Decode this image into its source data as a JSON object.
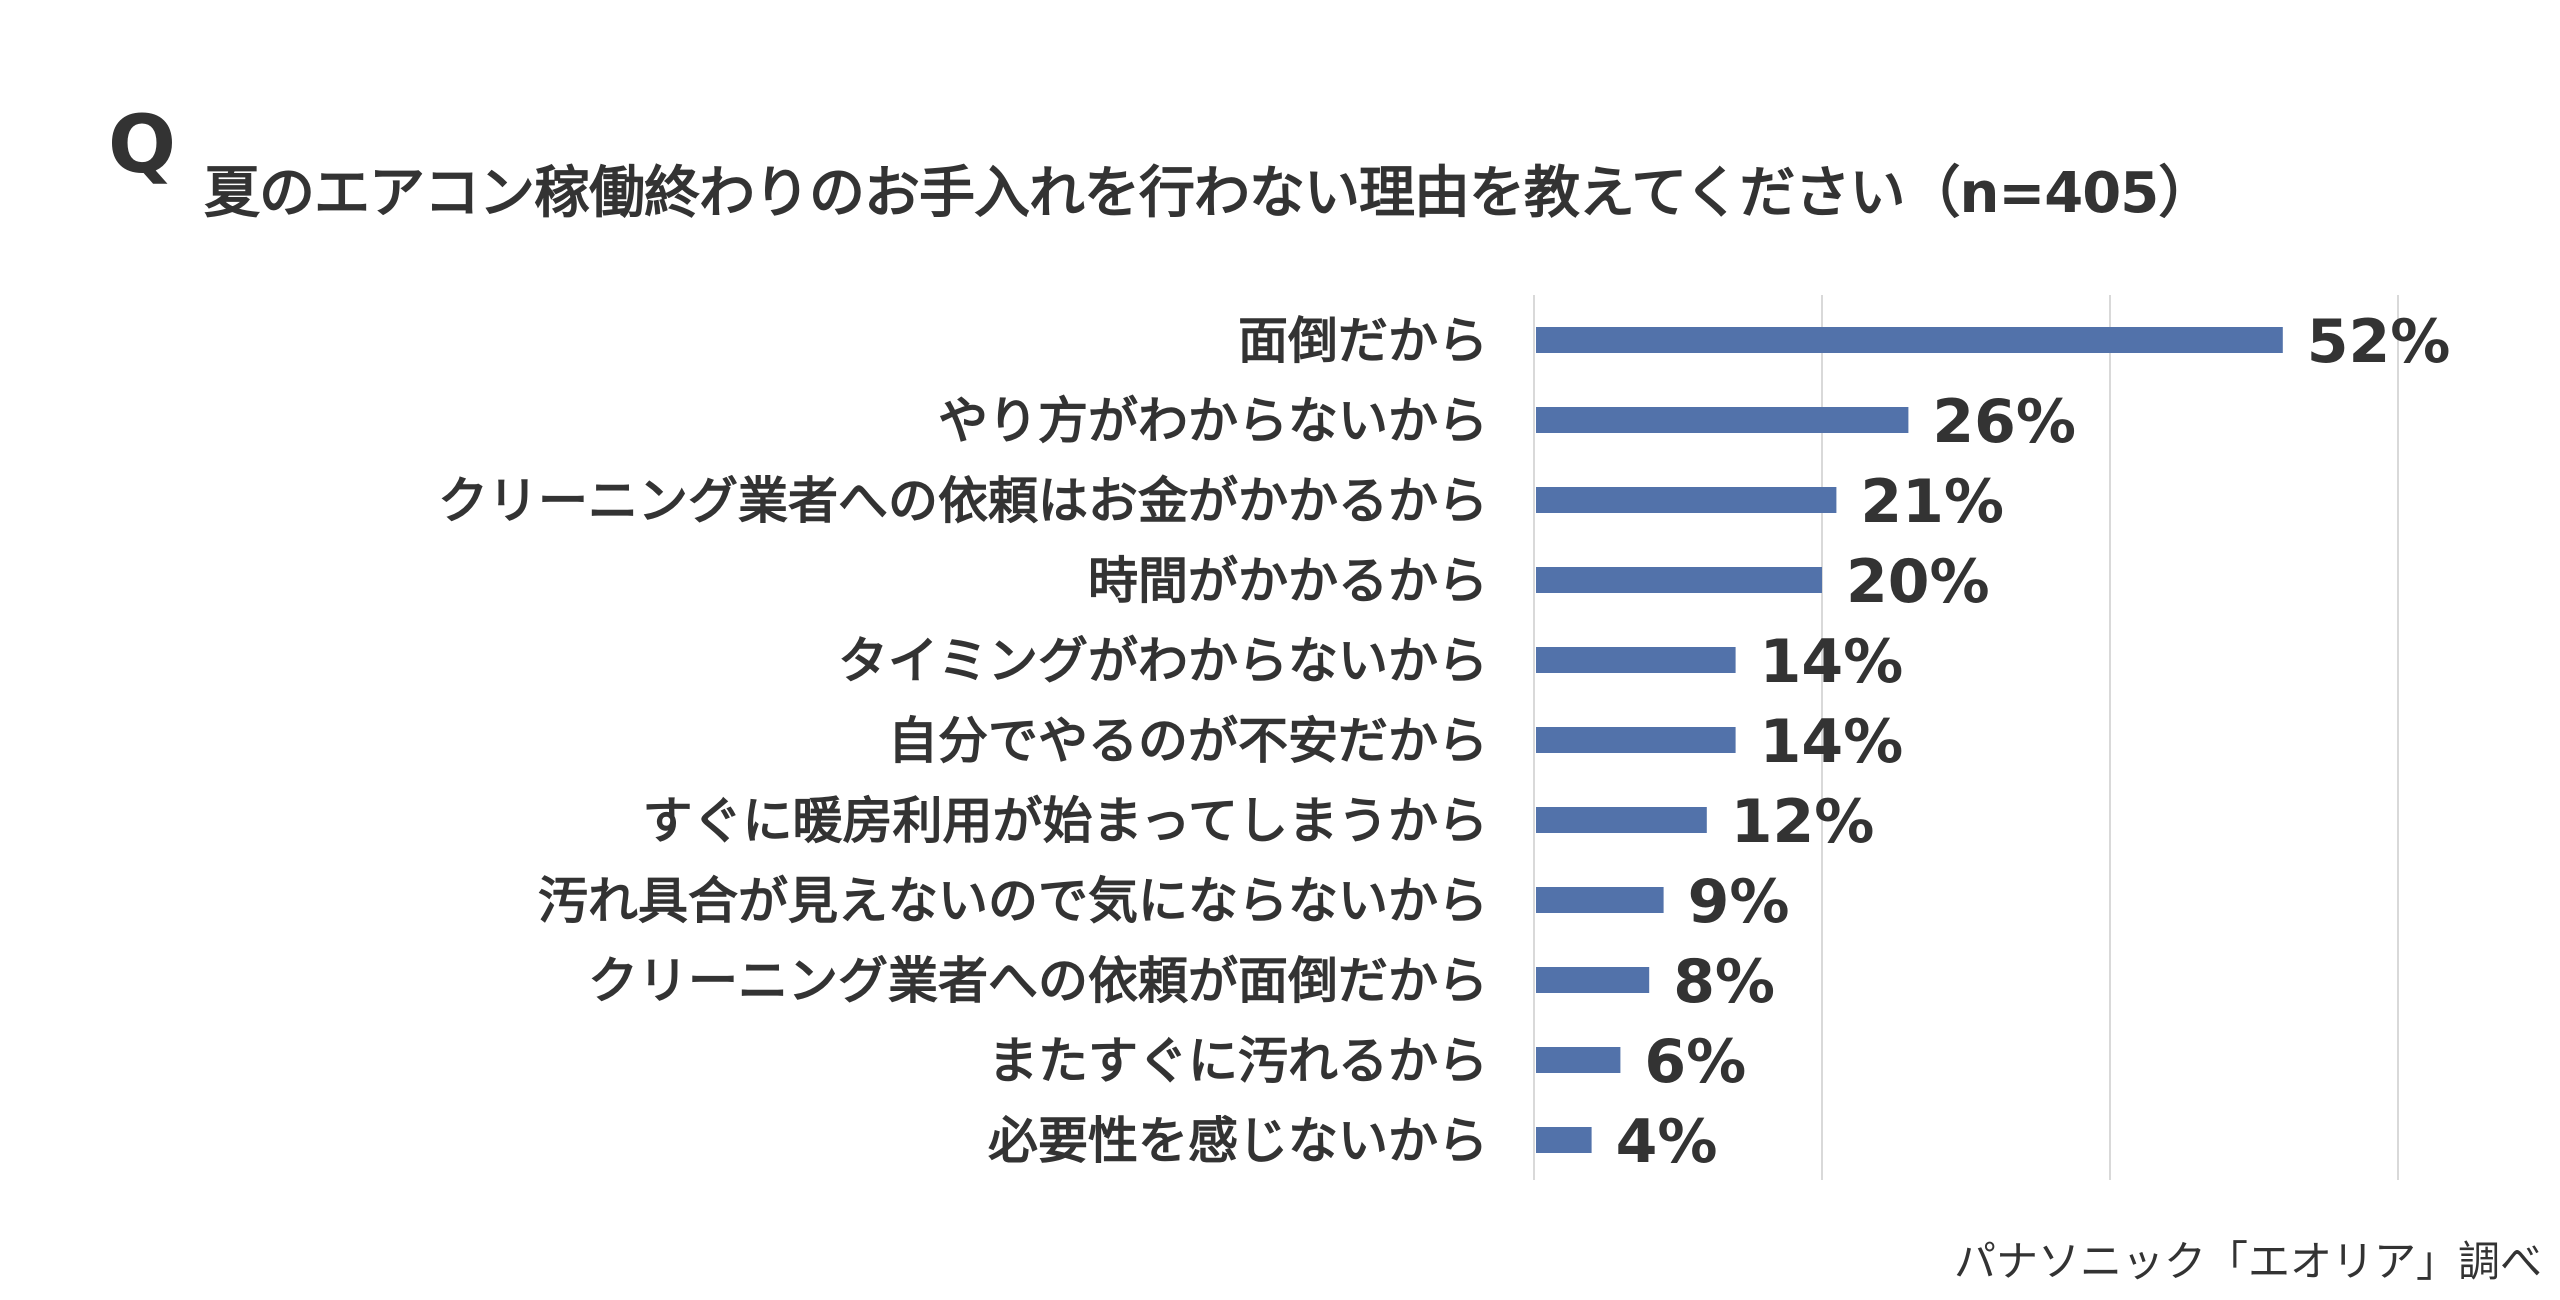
{
  "header": {
    "q_mark": "Q",
    "title": "夏のエアコン稼働終わりのお手入れを行わない理由を教えてください（n=405）"
  },
  "source": "パナソニック「エオリア」調べ",
  "chart_data": {
    "type": "bar",
    "orientation": "horizontal",
    "title": "夏のエアコン稼働終わりのお手入れを行わない理由を教えてください（n=405）",
    "categories": [
      "面倒だから",
      "やり方がわからないから",
      "クリーニング業者への依頼はお金がかかるから",
      "時間がかかるから",
      "タイミングがわからないから",
      "自分でやるのが不安だから",
      "すぐに暖房利用が始まってしまうから",
      "汚れ具合が見えないので気にならないから",
      "クリーニング業者への依頼が面倒だから",
      "またすぐに汚れるから",
      "必要性を感じないから"
    ],
    "values": [
      52,
      26,
      21,
      20,
      14,
      14,
      12,
      9,
      8,
      6,
      4
    ],
    "value_labels": [
      "52%",
      "26%",
      "21%",
      "20%",
      "14%",
      "14%",
      "12%",
      "9%",
      "8%",
      "6%",
      "4%"
    ],
    "unit": "%",
    "xlim": [
      0,
      60
    ],
    "gridlines": [
      0,
      20,
      40,
      60
    ],
    "grid": true,
    "bar_color": "#5272aa",
    "grid_color": "#d9d9d9"
  }
}
